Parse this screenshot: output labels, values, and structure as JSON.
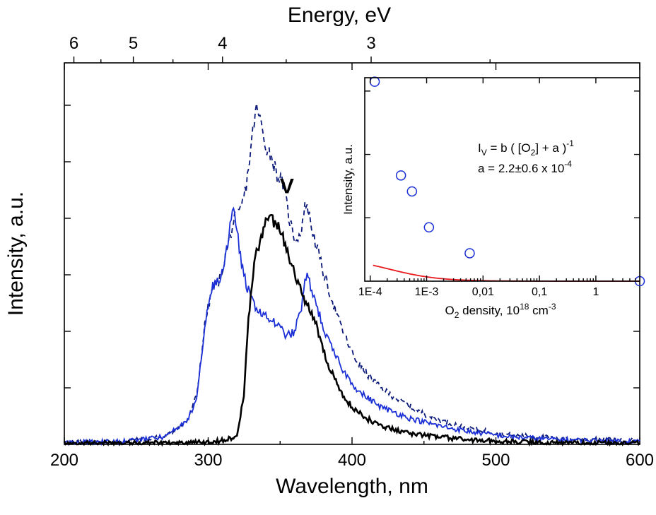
{
  "chart_data": [
    {
      "type": "line",
      "xlabel": "Wavelength, nm",
      "ylabel": "Intensity, a.u.",
      "x2label": "Energy, eV",
      "xlim": [
        200,
        600
      ],
      "ylim": [
        0,
        1.02
      ],
      "xticks": [
        "200",
        "300",
        "400",
        "500",
        "600"
      ],
      "x2ticks": [
        {
          "energy": 6,
          "label": "6"
        },
        {
          "energy": 5,
          "label": "5"
        },
        {
          "energy": 4,
          "label": "4"
        },
        {
          "energy": 3,
          "label": "3"
        }
      ],
      "annotation": "V",
      "annotation_at": [
        338,
        0.66
      ],
      "series": [
        {
          "color": "#0c1a7a",
          "style": "dashed",
          "x": [
            200,
            240,
            270,
            285,
            292,
            298,
            303,
            308,
            313,
            318,
            322,
            326,
            330,
            333,
            336,
            340,
            344,
            348,
            352,
            356,
            360,
            364,
            368,
            372,
            376,
            380,
            385,
            390,
            396,
            402,
            410,
            420,
            432,
            445,
            460,
            480,
            510,
            550,
            600
          ],
          "y": [
            0.005,
            0.008,
            0.02,
            0.06,
            0.13,
            0.33,
            0.42,
            0.44,
            0.52,
            0.6,
            0.62,
            0.68,
            0.8,
            0.9,
            0.87,
            0.8,
            0.77,
            0.72,
            0.7,
            0.61,
            0.55,
            0.56,
            0.65,
            0.58,
            0.52,
            0.46,
            0.4,
            0.34,
            0.28,
            0.23,
            0.19,
            0.15,
            0.12,
            0.09,
            0.065,
            0.045,
            0.025,
            0.015,
            0.01
          ]
        },
        {
          "color": "#1a2fd6",
          "style": "solid",
          "x": [
            200,
            240,
            270,
            285,
            292,
            298,
            303,
            308,
            312,
            316,
            318,
            320,
            323,
            327,
            331,
            335,
            340,
            345,
            350,
            355,
            360,
            365,
            368,
            370,
            373,
            377,
            382,
            388,
            395,
            405,
            420,
            440,
            460,
            480,
            510,
            550,
            600
          ],
          "y": [
            0.005,
            0.008,
            0.02,
            0.06,
            0.12,
            0.33,
            0.42,
            0.44,
            0.5,
            0.6,
            0.62,
            0.58,
            0.48,
            0.42,
            0.38,
            0.36,
            0.34,
            0.33,
            0.31,
            0.29,
            0.3,
            0.37,
            0.45,
            0.44,
            0.4,
            0.35,
            0.29,
            0.24,
            0.19,
            0.14,
            0.1,
            0.07,
            0.05,
            0.035,
            0.02,
            0.012,
            0.008
          ]
        },
        {
          "color": "#000000",
          "style": "solid",
          "x": [
            200,
            300,
            310,
            320,
            325,
            328,
            331,
            334,
            337,
            340,
            345,
            350,
            355,
            360,
            365,
            370,
            375,
            380,
            385,
            392,
            400,
            410,
            420,
            440,
            460,
            480,
            510,
            550,
            600
          ],
          "y": [
            0.003,
            0.005,
            0.01,
            0.02,
            0.14,
            0.34,
            0.45,
            0.52,
            0.56,
            0.59,
            0.6,
            0.57,
            0.52,
            0.46,
            0.41,
            0.36,
            0.32,
            0.25,
            0.2,
            0.14,
            0.1,
            0.07,
            0.05,
            0.03,
            0.02,
            0.012,
            0.007,
            0.004,
            0.003
          ]
        }
      ]
    },
    {
      "type": "scatter",
      "inset": true,
      "xlabel": "O",
      "xlabel_sub": "2",
      "xlabel_rest": " density, 10",
      "xlabel_sup": "18",
      "xlabel_unit": " cm",
      "xlabel_unit_sup": "-3",
      "ylabel": "Intensity, a.u.",
      "xscale": "log",
      "xlim": [
        8e-05,
        6
      ],
      "ylim": [
        0,
        1.02
      ],
      "xticks": [
        {
          "v": 0.0001,
          "label": "1E-4"
        },
        {
          "v": 0.001,
          "label": "1E-3"
        },
        {
          "v": 0.01,
          "label": "0,01"
        },
        {
          "v": 0.1,
          "label": "0,1"
        },
        {
          "v": 1,
          "label": "1"
        }
      ],
      "points": {
        "color": "#1a2fd6",
        "x": [
          0.00012,
          0.00035,
          0.00055,
          0.0011,
          0.0058,
          6
        ],
        "y": [
          1.0,
          0.53,
          0.45,
          0.27,
          0.14,
          0.0
        ]
      },
      "fit": {
        "color": "#e8191c",
        "a": 0.00022,
        "b": 2.64e-05
      },
      "equation_lhs": "I",
      "equation_sub": "V",
      "equation_mid": " = b ( [O",
      "equation_sub2": "2",
      "equation_rest": "] + a )",
      "equation_sup": "-1",
      "equation_line2": "a = 2.2±0.6 x 10",
      "equation_line2_sup": "-4"
    }
  ]
}
